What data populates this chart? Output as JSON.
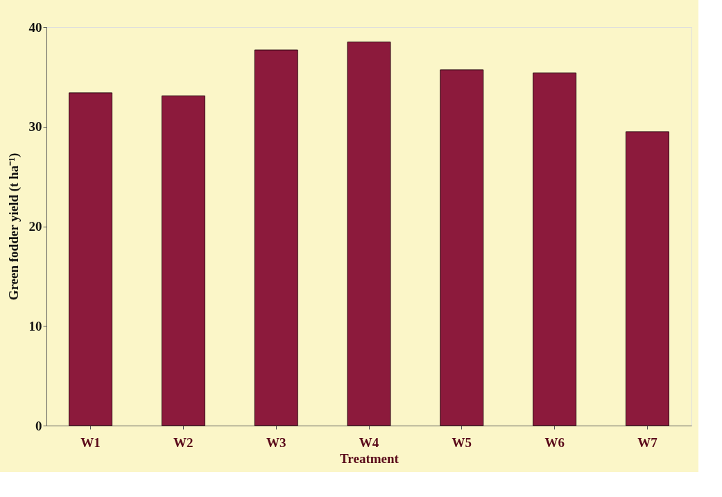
{
  "chart_data": {
    "type": "bar",
    "xlabel": "Treatment",
    "ylabel": "Green fodder yield (t ha⁻¹)",
    "categories": [
      "W1",
      "W2",
      "W3",
      "W4",
      "W5",
      "W6",
      "W7"
    ],
    "values": [
      33.4,
      33.1,
      37.7,
      38.5,
      35.7,
      35.4,
      29.5
    ],
    "color": "#8c1a3c",
    "ylim": [
      0,
      40
    ],
    "yticks": [
      0,
      10,
      20,
      30,
      40
    ],
    "grid": false
  }
}
